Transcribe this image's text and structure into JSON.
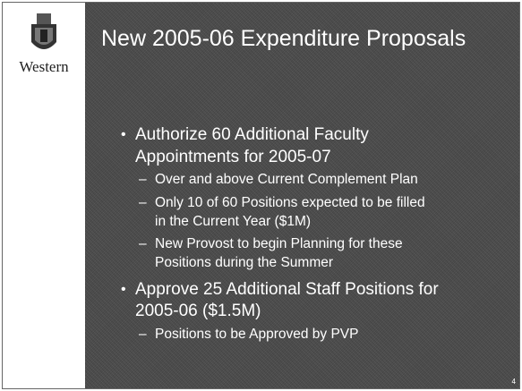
{
  "logo": {
    "text": "Western"
  },
  "title": "New 2005-06 Expenditure Proposals",
  "bullets": [
    {
      "lines": [
        "Authorize 60 Additional Faculty",
        "Appointments for 2005-07"
      ],
      "subitems": [
        {
          "lines": [
            "Over and above Current Complement Plan"
          ]
        },
        {
          "lines": [
            "Only 10 of 60 Positions expected to be filled",
            "in the Current Year  ($1M)"
          ]
        },
        {
          "lines": [
            "New Provost to begin Planning for these",
            "Positions during the Summer"
          ]
        }
      ]
    },
    {
      "lines": [
        "Approve 25 Additional Staff Positions for",
        "2005-06 ($1.5M)"
      ],
      "subitems": [
        {
          "lines": [
            "Positions to be Approved by PVP"
          ]
        }
      ]
    }
  ],
  "page_number": "4"
}
